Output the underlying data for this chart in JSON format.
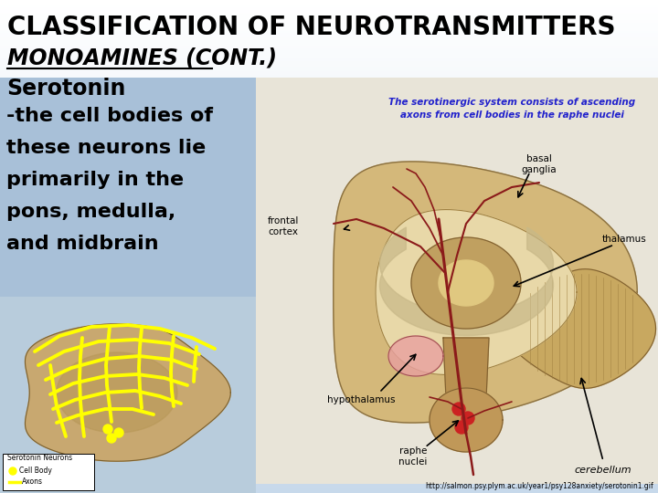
{
  "title_line1": "CLASSIFICATION OF NEUROTRANSMITTERS",
  "title_line2": "MONOAMINES (CONT.)",
  "body_lines": [
    "Serotonin",
    "-the cell bodies of",
    "these neurons lie",
    "primarily in the",
    "pons, medulla,",
    "and midbrain"
  ],
  "bg_top": "#ffffff",
  "bg_bottom": "#c8d8ea",
  "left_panel_bg": "#a8c0d8",
  "left_img_bg": "#c8d8ea",
  "right_img_bg": "#e8e8e0",
  "title_color": "#000000",
  "body_color": "#000000",
  "url_text": "http://salmon.psy.plym.ac.uk/year1/psy128anxiety/serotonin1.gif",
  "url_fontsize": 5.5,
  "title_fontsize": 20,
  "title2_fontsize": 17,
  "body_fontsize": 16,
  "note_text1": "The serotinergic system consists of ascending",
  "note_text2": "axons from cell bodies in the raphe nuclei",
  "note_color": "#2222cc",
  "label_frontal": "frontal\ncortex",
  "label_basal": "basal\nganglia",
  "label_thalamus": "thalamus",
  "label_hypo": "hypothalamus",
  "label_raphe": "raphe\nnuclei",
  "label_cerebellum": "cerebellum",
  "legend_title": "Serotonin Neurons",
  "legend_cell": "Cell Body",
  "legend_axon": "Axons"
}
